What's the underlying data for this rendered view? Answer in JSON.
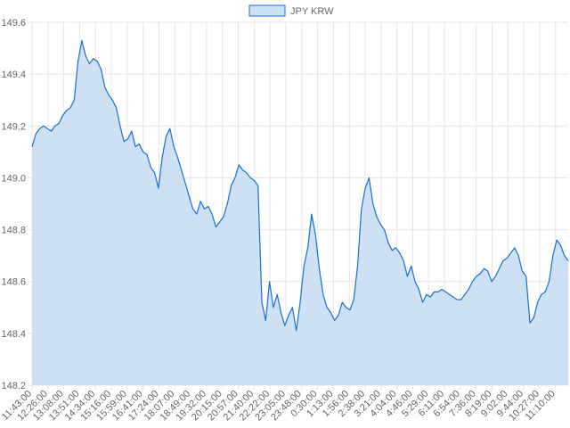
{
  "chart_data": {
    "type": "area",
    "legend": {
      "label": "JPY KRW",
      "position": "top"
    },
    "colors": {
      "line": "#1a6fcf",
      "fill": "#cde0f4",
      "grid": "#e6e6e6"
    },
    "grid": true,
    "ylim": [
      148.2,
      149.6
    ],
    "y_ticks": [
      148.2,
      148.4,
      148.6,
      148.8,
      149.0,
      149.2,
      149.4,
      149.6
    ],
    "y_tick_labels": [
      "148.2",
      "148.4",
      "148.6",
      "148.8",
      "149.0",
      "149.2",
      "149.4",
      "149.6"
    ],
    "x_tick_labels": [
      "11:43:00",
      "12:26:00",
      "13:08:00",
      "13:51:00",
      "14:34:00",
      "15:16:00",
      "15:59:00",
      "16:41:00",
      "17:24:00",
      "18:07:00",
      "18:49:00",
      "19:32:00",
      "20:15:00",
      "20:57:00",
      "21:40:00",
      "22:22:00",
      "23:05:00",
      "23:48:00",
      "0:30:00",
      "1:13:00",
      "1:56:00",
      "2:38:00",
      "3:21:00",
      "4:04:00",
      "4:46:00",
      "5:29:00",
      "6:11:00",
      "6:54:00",
      "7:36:00",
      "8:19:00",
      "9:02:00",
      "9:44:00",
      "10:27:00",
      "11:10:00"
    ],
    "series": [
      {
        "name": "JPY KRW",
        "values": [
          149.12,
          149.17,
          149.19,
          149.2,
          149.19,
          149.18,
          149.2,
          149.21,
          149.24,
          149.26,
          149.27,
          149.3,
          149.45,
          149.53,
          149.47,
          149.44,
          149.46,
          149.45,
          149.42,
          149.35,
          149.32,
          149.3,
          149.27,
          149.2,
          149.14,
          149.15,
          149.18,
          149.12,
          149.13,
          149.1,
          149.09,
          149.04,
          149.02,
          148.96,
          149.08,
          149.16,
          149.19,
          149.12,
          149.08,
          149.03,
          148.98,
          148.93,
          148.88,
          148.86,
          148.91,
          148.88,
          148.89,
          148.86,
          148.81,
          148.83,
          148.85,
          148.9,
          148.97,
          149.0,
          149.05,
          149.03,
          149.02,
          149.0,
          148.99,
          148.97,
          148.52,
          148.45,
          148.6,
          148.5,
          148.55,
          148.48,
          148.43,
          148.47,
          148.5,
          148.41,
          148.52,
          148.66,
          148.73,
          148.86,
          148.78,
          148.65,
          148.55,
          148.5,
          148.48,
          148.45,
          148.47,
          148.52,
          148.5,
          148.49,
          148.53,
          148.66,
          148.88,
          148.96,
          149.0,
          148.9,
          148.85,
          148.82,
          148.8,
          148.75,
          148.72,
          148.73,
          148.71,
          148.68,
          148.62,
          148.66,
          148.6,
          148.57,
          148.52,
          148.55,
          148.54,
          148.56,
          148.56,
          148.57,
          148.56,
          148.55,
          148.54,
          148.53,
          148.53,
          148.55,
          148.57,
          148.6,
          148.62,
          148.63,
          148.65,
          148.64,
          148.6,
          148.62,
          148.65,
          148.68,
          148.69,
          148.71,
          148.73,
          148.7,
          148.64,
          148.62,
          148.44,
          148.46,
          148.52,
          148.55,
          148.56,
          148.6,
          148.7,
          148.76,
          148.74,
          148.7,
          148.68
        ]
      }
    ]
  }
}
